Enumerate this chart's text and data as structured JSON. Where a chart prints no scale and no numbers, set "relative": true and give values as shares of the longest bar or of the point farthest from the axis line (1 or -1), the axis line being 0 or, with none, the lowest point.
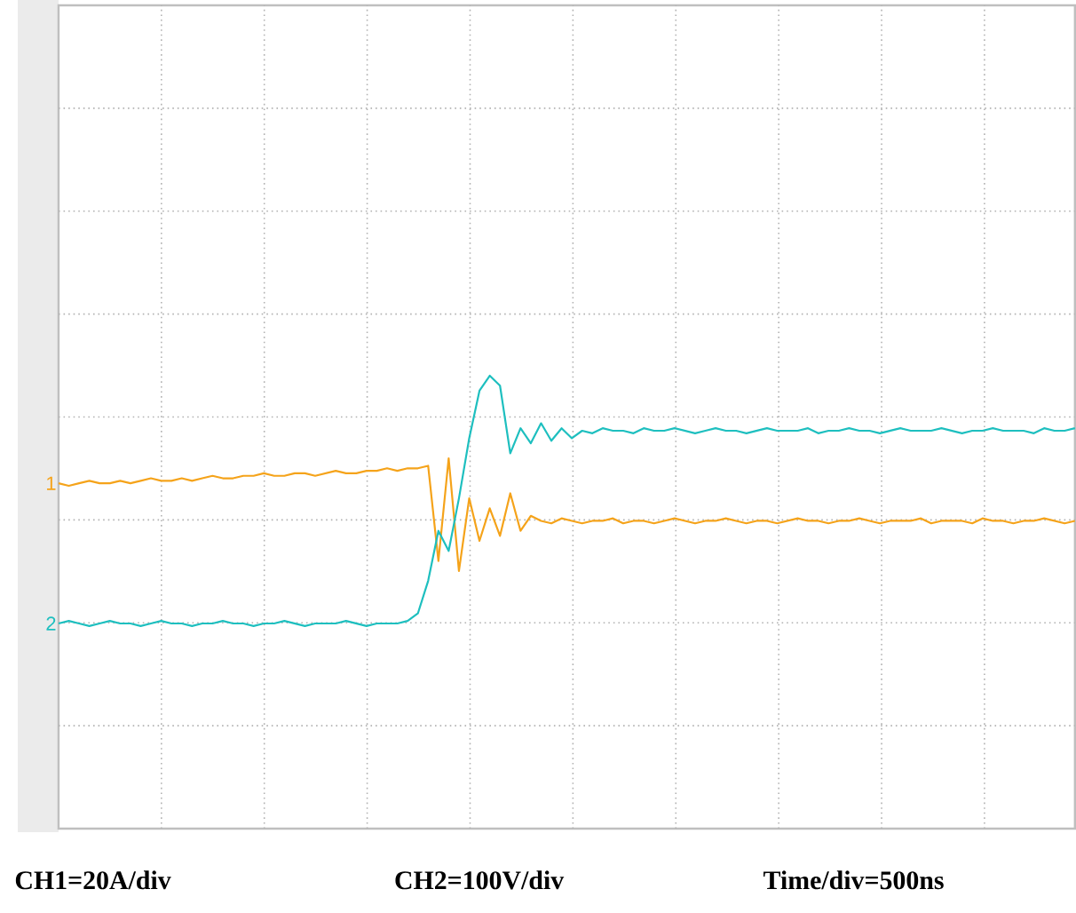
{
  "chart_data": {
    "type": "line",
    "relative": true,
    "grid": true,
    "line_style": "solid",
    "marker": "none",
    "categories": [
      null,
      null,
      null,
      null,
      null,
      null,
      null,
      null,
      null,
      null,
      null,
      null,
      null,
      null,
      null,
      null,
      null,
      null,
      null,
      null,
      null,
      null,
      null,
      null,
      null,
      null,
      null,
      null,
      null,
      null,
      null,
      null,
      null,
      null,
      null,
      null,
      null,
      null,
      null,
      null,
      null,
      null,
      null,
      null,
      null,
      null,
      null,
      null,
      null,
      null,
      null,
      null,
      null,
      null,
      null,
      null,
      null,
      null,
      null,
      null,
      null,
      null,
      null,
      null,
      null,
      null,
      null,
      null,
      null,
      null,
      null,
      null,
      null,
      null,
      null,
      null,
      null,
      null,
      null,
      null,
      null,
      null,
      null,
      null,
      null,
      null,
      null,
      null,
      null,
      null,
      null,
      null,
      null,
      null,
      null,
      null,
      null,
      null,
      null,
      null
    ],
    "series": [
      {
        "name": "1",
        "color": "#f5a31a",
        "values": [
          0.57,
          0.56,
          0.57,
          0.58,
          0.57,
          0.57,
          0.58,
          0.57,
          0.58,
          0.59,
          0.58,
          0.58,
          0.59,
          0.58,
          0.59,
          0.6,
          0.59,
          0.59,
          0.6,
          0.6,
          0.61,
          0.6,
          0.6,
          0.61,
          0.61,
          0.6,
          0.61,
          0.62,
          0.61,
          0.61,
          0.62,
          0.62,
          0.63,
          0.62,
          0.63,
          0.63,
          0.64,
          0.26,
          0.67,
          0.22,
          0.51,
          0.34,
          0.47,
          0.36,
          0.53,
          0.38,
          0.44,
          0.42,
          0.41,
          0.43,
          0.42,
          0.41,
          0.42,
          0.42,
          0.43,
          0.41,
          0.42,
          0.42,
          0.41,
          0.42,
          0.43,
          0.42,
          0.41,
          0.42,
          0.42,
          0.43,
          0.42,
          0.41,
          0.42,
          0.42,
          0.41,
          0.42,
          0.43,
          0.42,
          0.42,
          0.41,
          0.42,
          0.42,
          0.43,
          0.42,
          0.41,
          0.42,
          0.42,
          0.42,
          0.43,
          0.41,
          0.42,
          0.42,
          0.42,
          0.41,
          0.43,
          0.42,
          0.42,
          0.41,
          0.42,
          0.42,
          0.43,
          0.42,
          0.41,
          0.42
        ]
      },
      {
        "name": "2",
        "color": "#1ebfbf",
        "values": [
          0.01,
          0.02,
          0.01,
          0.0,
          0.01,
          0.02,
          0.01,
          0.01,
          0.0,
          0.01,
          0.02,
          0.01,
          0.01,
          0.0,
          0.01,
          0.01,
          0.02,
          0.01,
          0.01,
          0.0,
          0.01,
          0.01,
          0.02,
          0.01,
          0.0,
          0.01,
          0.01,
          0.01,
          0.02,
          0.01,
          0.0,
          0.01,
          0.01,
          0.01,
          0.02,
          0.05,
          0.18,
          0.38,
          0.3,
          0.51,
          0.75,
          0.94,
          1,
          0.96,
          0.69,
          0.79,
          0.73,
          0.81,
          0.74,
          0.79,
          0.75,
          0.78,
          0.77,
          0.79,
          0.78,
          0.78,
          0.77,
          0.79,
          0.78,
          0.78,
          0.79,
          0.78,
          0.77,
          0.78,
          0.79,
          0.78,
          0.78,
          0.77,
          0.78,
          0.79,
          0.78,
          0.78,
          0.78,
          0.79,
          0.77,
          0.78,
          0.78,
          0.79,
          0.78,
          0.78,
          0.77,
          0.78,
          0.79,
          0.78,
          0.78,
          0.78,
          0.79,
          0.78,
          0.77,
          0.78,
          0.78,
          0.79,
          0.78,
          0.78,
          0.78,
          0.77,
          0.79,
          0.78,
          0.78,
          0.79
        ]
      }
    ],
    "annotations": [
      "CH1=20A/div",
      "CH2=100V/div",
      "Time/div=500ns"
    ]
  }
}
